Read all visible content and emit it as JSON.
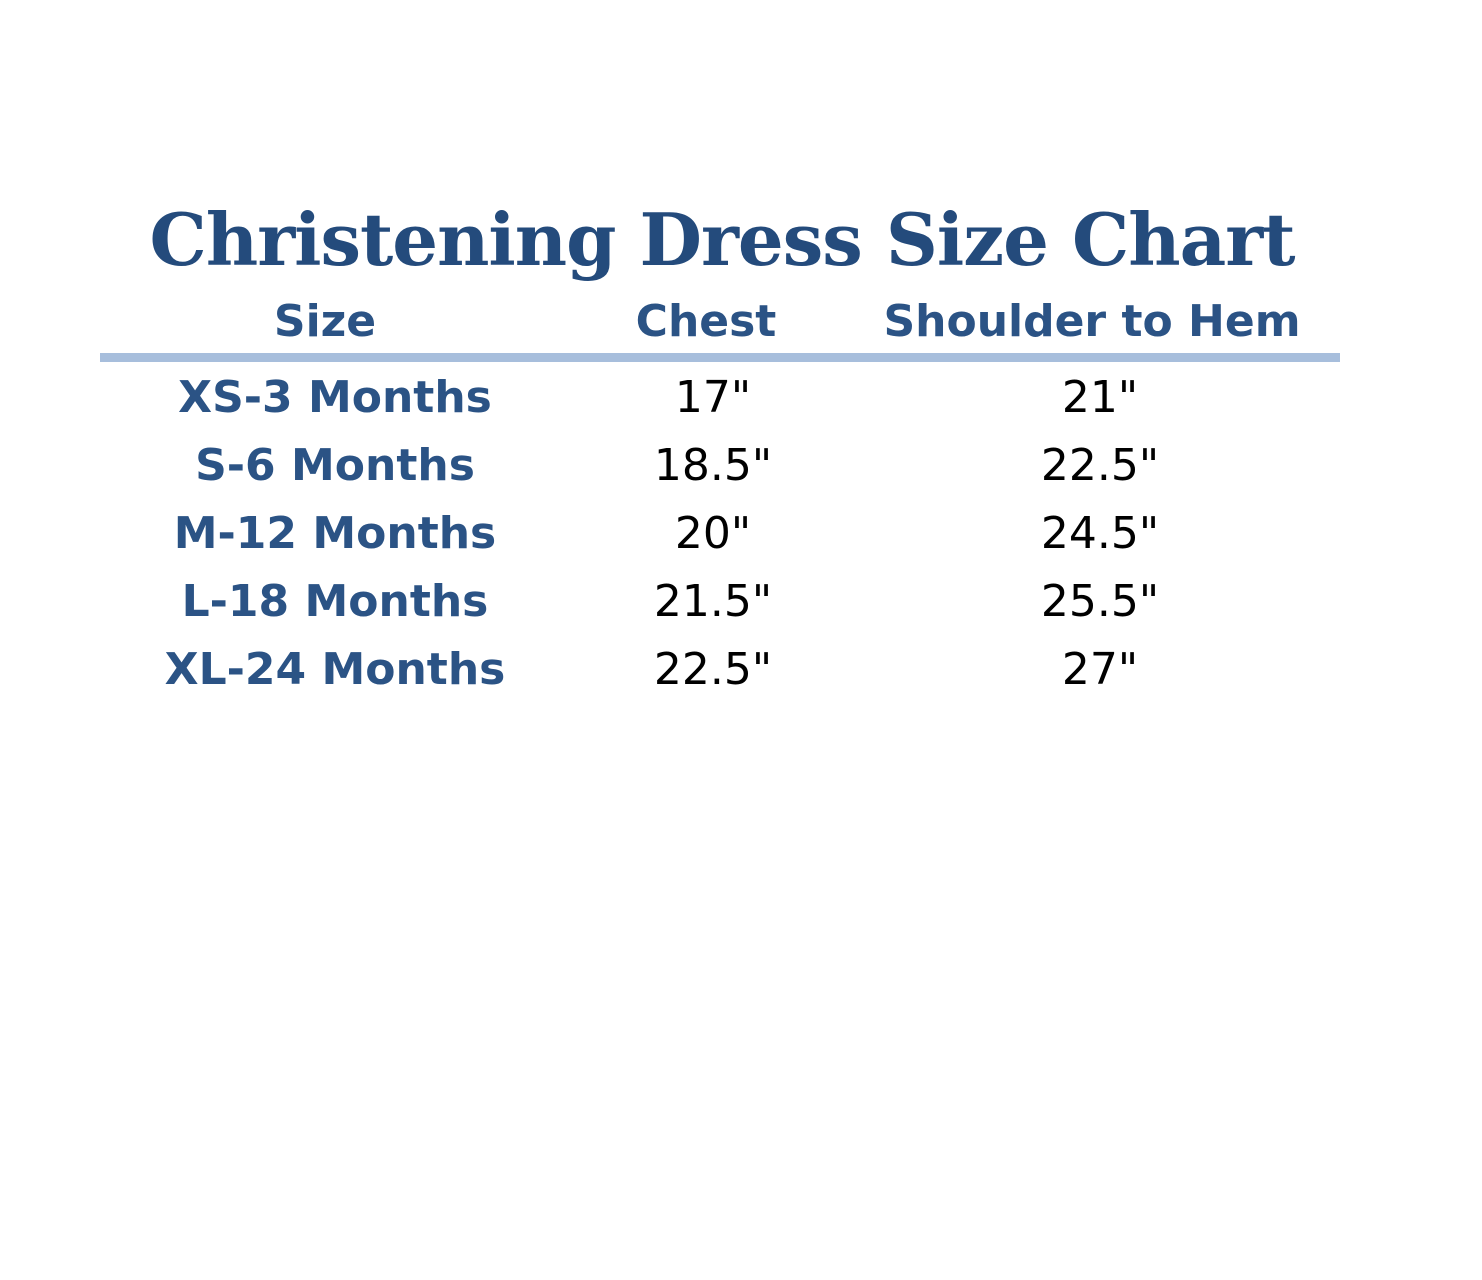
{
  "header": {
    "title": "Christening Dress Size Chart"
  },
  "table": {
    "columns": [
      "Size",
      "Chest",
      "Shoulder to Hem"
    ],
    "rows": [
      [
        "XS-3 Months",
        "17\"",
        "21\""
      ],
      [
        "S-6 Months",
        "18.5\"",
        "22.5\""
      ],
      [
        "M-12 Months",
        "20\"",
        "24.5\""
      ],
      [
        "L-18 Months",
        "21.5\"",
        "25.5\""
      ],
      [
        "XL-24 Months",
        "22.5\"",
        "27\""
      ]
    ]
  }
}
